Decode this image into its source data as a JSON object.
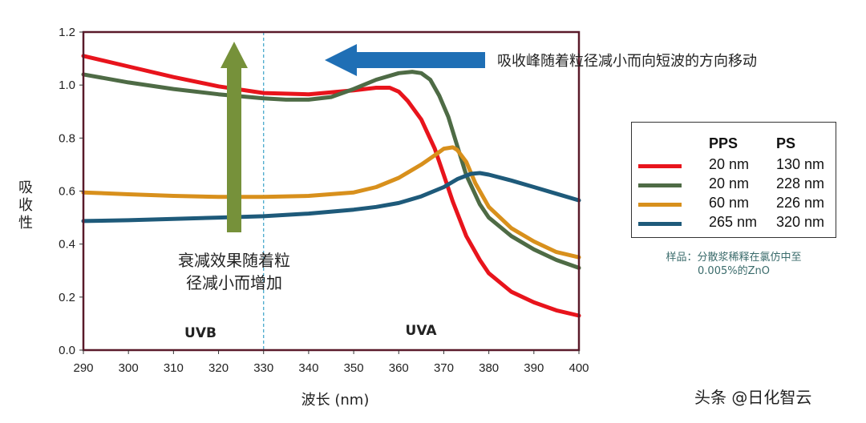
{
  "chart_data": {
    "type": "line",
    "xlabel": "波长 (nm)",
    "ylabel": "吸收性",
    "xlim": [
      290,
      400
    ],
    "ylim": [
      0,
      1.2
    ],
    "xticks": [
      "290",
      "300",
      "310",
      "320",
      "330",
      "340",
      "350",
      "360",
      "370",
      "380",
      "390",
      "400"
    ],
    "yticks": [
      "0.0",
      "0.2",
      "0.4",
      "0.6",
      "0.8",
      "1.0",
      "1.2"
    ],
    "series": [
      {
        "color": "#e8141c",
        "x": [
          290,
          300,
          310,
          320,
          330,
          340,
          350,
          355,
          358,
          360,
          362,
          365,
          368,
          370,
          372,
          375,
          378,
          380,
          385,
          390,
          395,
          400
        ],
        "y": [
          1.11,
          1.07,
          1.03,
          0.995,
          0.97,
          0.965,
          0.98,
          0.99,
          0.99,
          0.975,
          0.94,
          0.87,
          0.76,
          0.66,
          0.56,
          0.43,
          0.34,
          0.29,
          0.22,
          0.18,
          0.15,
          0.13
        ]
      },
      {
        "color": "#4e6b45",
        "x": [
          290,
          300,
          310,
          320,
          330,
          335,
          340,
          345,
          350,
          355,
          360,
          363,
          365,
          367,
          369,
          371,
          373,
          375,
          378,
          380,
          385,
          390,
          395,
          400
        ],
        "y": [
          1.04,
          1.01,
          0.985,
          0.965,
          0.95,
          0.945,
          0.945,
          0.955,
          0.985,
          1.02,
          1.045,
          1.05,
          1.045,
          1.02,
          0.96,
          0.88,
          0.77,
          0.66,
          0.55,
          0.5,
          0.43,
          0.38,
          0.34,
          0.31
        ]
      },
      {
        "color": "#d8901c",
        "x": [
          290,
          300,
          310,
          320,
          330,
          340,
          350,
          355,
          360,
          365,
          368,
          370,
          372,
          373,
          375,
          377,
          380,
          385,
          390,
          395,
          400
        ],
        "y": [
          0.595,
          0.588,
          0.582,
          0.578,
          0.578,
          0.582,
          0.595,
          0.615,
          0.65,
          0.7,
          0.735,
          0.76,
          0.765,
          0.755,
          0.71,
          0.63,
          0.54,
          0.46,
          0.41,
          0.37,
          0.35
        ]
      },
      {
        "color": "#1e5a7a",
        "x": [
          290,
          300,
          310,
          320,
          330,
          340,
          350,
          355,
          360,
          365,
          370,
          373,
          376,
          378,
          380,
          385,
          390,
          395,
          400
        ],
        "y": [
          0.487,
          0.49,
          0.495,
          0.5,
          0.505,
          0.515,
          0.53,
          0.54,
          0.555,
          0.58,
          0.615,
          0.645,
          0.665,
          0.668,
          0.662,
          0.64,
          0.615,
          0.59,
          0.565
        ]
      }
    ],
    "annotations": {
      "region_left": "UVB",
      "region_right": "UVA",
      "boundary_x": 330,
      "top_arrow_text": "吸收峰随着粒径减小而向短波的方向移动",
      "up_arrow_text_1": "衰减效果随着粒",
      "up_arrow_text_2": "径减小而增加"
    }
  },
  "legend": {
    "col1_header": "PPS",
    "col2_header": "PS",
    "rows": [
      {
        "pps": "20 nm",
        "ps": "130 nm",
        "color": "#e8141c"
      },
      {
        "pps": "20 nm",
        "ps": "228 nm",
        "color": "#4e6b45"
      },
      {
        "pps": "60 nm",
        "ps": "226 nm",
        "color": "#d8901c"
      },
      {
        "pps": "265 nm",
        "ps": "320 nm",
        "color": "#1e5a7a"
      }
    ]
  },
  "sample_note_line1": "样品：分散浆稀释在氯仿中至",
  "sample_note_line2": "0.005%的ZnO",
  "watermark": "头条 @日化智云",
  "colors": {
    "frame": "#5a1a2a",
    "blue_arrow": "#1f6fb5",
    "green_arrow": "#76913a",
    "dashed_line": "#3aa3c8"
  }
}
